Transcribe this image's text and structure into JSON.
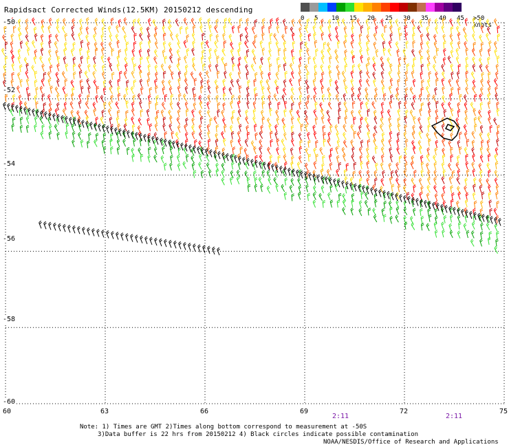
{
  "title": "Rapidsact Corrected Winds(12.5KM) 20150212 descending",
  "legend": {
    "ticks": [
      "0",
      "5",
      "10",
      "15",
      "20",
      "25",
      "30",
      "35",
      "40",
      "45",
      ">50 knots"
    ],
    "colors": [
      "#505050",
      "#9a9a9a",
      "#00bfff",
      "#0040ff",
      "#00a000",
      "#30e030",
      "#ffe000",
      "#ffb000",
      "#ff8000",
      "#ff4000",
      "#ff0000",
      "#c00000",
      "#803000",
      "#c07050",
      "#ff40ff",
      "#a000a0",
      "#600080",
      "#300060"
    ]
  },
  "lat_labels": [
    "-50",
    "-52",
    "-54",
    "-56",
    "-58",
    "-60"
  ],
  "lon_labels": [
    "60",
    "63",
    "66",
    "69",
    "72",
    "75"
  ],
  "time_labels": [
    "2:11",
    "2:11"
  ],
  "notes": {
    "line1": "Note: 1) Times are GMT 2)Times along bottom correspond to measurement at -50S",
    "line2": "3)Data buffer is 22 hrs from 20150212 4) Black circles indicate possible contamination",
    "line3": "NOAA/NESDIS/Office of Research and Applications"
  },
  "map": {
    "lon_range": [
      60,
      75
    ],
    "lat_range": [
      -60,
      -50
    ],
    "swath_edge_color": "#000000",
    "wind_colors_north": [
      "#ff8000",
      "#ff4000",
      "#ffb000",
      "#ffe000",
      "#c00000",
      "#ff0000"
    ],
    "wind_colors_south": [
      "#00a000",
      "#30e030"
    ]
  }
}
